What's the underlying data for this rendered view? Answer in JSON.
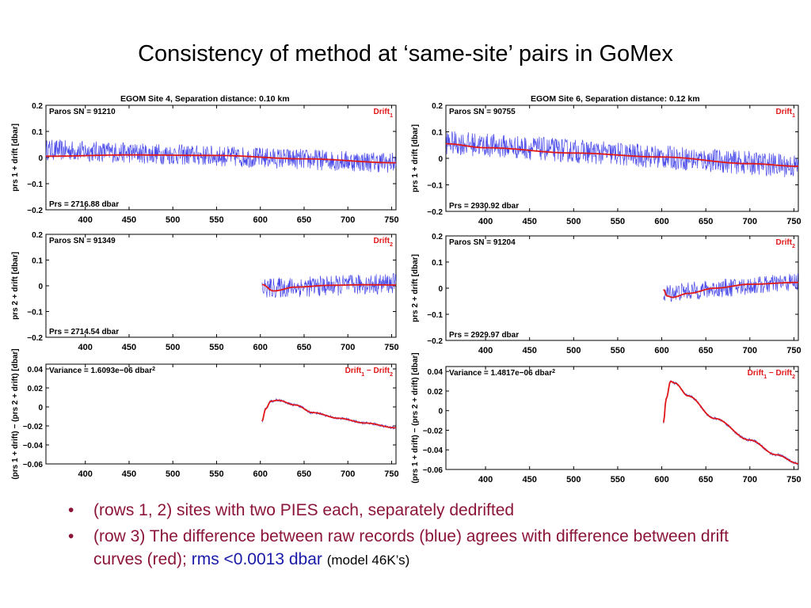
{
  "slide_title": "Consistency of method at ‘same-site’ pairs in GoMex",
  "bullets": [
    {
      "marker": "•",
      "text": "(rows 1, 2)  sites with two PIES each, separately dedrifted"
    },
    {
      "marker": "•",
      "text_main": "(row 3) The difference between raw records (blue) agrees with difference between drift curves (red);",
      "text_rms": "rms <0.0013 dbar",
      "text_model": "(model 46K’s)"
    }
  ],
  "colors": {
    "raw": "#2a2ae6",
    "drift": "#e01818",
    "bullet_text": "#8b1538",
    "rms_text": "#1a1aa8"
  },
  "chart_data": [
    {
      "type": "line",
      "panel": "left-row1",
      "title": "EGOM Site 4,  Separation distance: 0.10 km",
      "ylabel": "prs 1 + drift [dbar]",
      "top_left": "Paros SN = 91210",
      "bottom_left": "Prs = 2716.88 dbar",
      "legend": [
        "Drift",
        "1"
      ],
      "xlim": [
        355,
        755
      ],
      "ylim": [
        -0.2,
        0.2
      ],
      "xticks": [
        "400",
        "450",
        "500",
        "550",
        "600",
        "650",
        "700",
        "750"
      ],
      "yticks": [
        "0.2",
        "0.1",
        "0",
        "−0.1",
        "−0.2"
      ],
      "raw": {
        "x_start": 355,
        "x_end": 755,
        "noise": 0.04,
        "trend": [
          [
            355,
            0.03
          ],
          [
            755,
            -0.02
          ]
        ]
      },
      "drift": {
        "x": [
          355,
          450,
          550,
          650,
          755
        ],
        "y": [
          0.005,
          0.01,
          0.008,
          -0.005,
          -0.02
        ]
      }
    },
    {
      "type": "line",
      "panel": "right-row1",
      "title": "EGOM Site 6,  Separation distance: 0.12 km",
      "ylabel": "prs 1 + drift [dbar]",
      "top_left": "Paros SN = 90755",
      "bottom_left": "Prs = 2930.92 dbar",
      "legend": [
        "Drift",
        "1"
      ],
      "xlim": [
        355,
        755
      ],
      "ylim": [
        -0.2,
        0.2
      ],
      "xticks": [
        "400",
        "450",
        "500",
        "550",
        "600",
        "650",
        "700",
        "750"
      ],
      "yticks": [
        "0.2",
        "0.1",
        "0",
        "−0.1",
        "−0.2"
      ],
      "raw": {
        "x_start": 355,
        "x_end": 755,
        "noise": 0.045,
        "trend": [
          [
            355,
            0.06
          ],
          [
            755,
            -0.03
          ]
        ]
      },
      "drift": {
        "x": [
          355,
          400,
          500,
          600,
          700,
          755
        ],
        "y": [
          0.055,
          0.04,
          0.02,
          0.005,
          -0.02,
          -0.03
        ]
      }
    },
    {
      "type": "line",
      "panel": "left-row2",
      "ylabel": "prs 2 + drift [dbar]",
      "top_left": "Paros SN = 91349",
      "bottom_left": "Prs = 2714.54 dbar",
      "legend": [
        "Drift",
        "2"
      ],
      "xlim": [
        355,
        755
      ],
      "ylim": [
        -0.2,
        0.2
      ],
      "xticks": [
        "400",
        "450",
        "500",
        "550",
        "600",
        "650",
        "700",
        "750"
      ],
      "yticks": [
        "0.2",
        "0.1",
        "0",
        "−0.1",
        "−0.2"
      ],
      "raw": {
        "x_start": 602,
        "x_end": 755,
        "noise": 0.04,
        "trend": [
          [
            602,
            -0.01
          ],
          [
            755,
            0.01
          ]
        ]
      },
      "drift": {
        "x": [
          602,
          615,
          640,
          680,
          720,
          755
        ],
        "y": [
          0.005,
          -0.02,
          -0.005,
          0.002,
          0.004,
          0.003
        ]
      }
    },
    {
      "type": "line",
      "panel": "right-row2",
      "ylabel": "prs 2 + drift [dbar]",
      "top_left": "Paros SN = 91204",
      "bottom_left": "Prs = 2929.97 dbar",
      "legend": [
        "Drift",
        "2"
      ],
      "xlim": [
        355,
        755
      ],
      "ylim": [
        -0.2,
        0.2
      ],
      "xticks": [
        "400",
        "450",
        "500",
        "550",
        "600",
        "650",
        "700",
        "750"
      ],
      "yticks": [
        "0.2",
        "0.1",
        "0",
        "−0.1",
        "−0.2"
      ],
      "raw": {
        "x_start": 602,
        "x_end": 755,
        "noise": 0.035,
        "trend": [
          [
            602,
            -0.02
          ],
          [
            755,
            0.025
          ]
        ]
      },
      "drift": {
        "x": [
          602,
          606,
          612,
          630,
          660,
          700,
          755
        ],
        "y": [
          -0.005,
          -0.03,
          -0.035,
          -0.02,
          0.0,
          0.015,
          0.022
        ]
      }
    },
    {
      "type": "line",
      "panel": "left-row3",
      "ylabel": "(prs 1 + drift) − (prs 2 + drift) [dbar]",
      "top_left": "Variance =  1.6093e−06 dbar",
      "top_left_sup": "2",
      "legend": [
        "Drift",
        "1",
        " − Drift",
        "2"
      ],
      "xlim": [
        355,
        755
      ],
      "ylim": [
        -0.06,
        0.045
      ],
      "xticks": [
        "400",
        "450",
        "500",
        "550",
        "600",
        "650",
        "700",
        "750"
      ],
      "yticks": [
        "0.04",
        "0.02",
        "0",
        "−0.02",
        "−0.04",
        "−0.06"
      ],
      "raw": {
        "x_start": 602,
        "x_end": 755,
        "noise": 0.0015,
        "follow_drift": true
      },
      "drift": {
        "x": [
          602,
          606,
          612,
          620,
          640,
          660,
          690,
          720,
          755
        ],
        "y": [
          -0.015,
          -0.002,
          0.006,
          0.007,
          0.002,
          -0.006,
          -0.012,
          -0.017,
          -0.022
        ]
      }
    },
    {
      "type": "line",
      "panel": "right-row3",
      "ylabel": "(prs 1 + drift) − (prs 2 + drift) [dbar]",
      "top_left": "Variance =  1.4817e−06 dbar",
      "top_left_sup": "2",
      "legend": [
        "Drift",
        "1",
        " − Drift",
        "2"
      ],
      "xlim": [
        355,
        755
      ],
      "ylim": [
        -0.06,
        0.045
      ],
      "xticks": [
        "400",
        "450",
        "500",
        "550",
        "600",
        "650",
        "700",
        "750"
      ],
      "yticks": [
        "0.04",
        "0.02",
        "0",
        "−0.02",
        "−0.04",
        "−0.06"
      ],
      "raw": {
        "x_start": 602,
        "x_end": 755,
        "noise": 0.0015,
        "follow_drift": true
      },
      "drift": {
        "x": [
          602,
          605,
          610,
          615,
          630,
          660,
          700,
          730,
          755
        ],
        "y": [
          -0.012,
          0.012,
          0.03,
          0.028,
          0.015,
          -0.008,
          -0.03,
          -0.045,
          -0.054
        ]
      }
    }
  ]
}
